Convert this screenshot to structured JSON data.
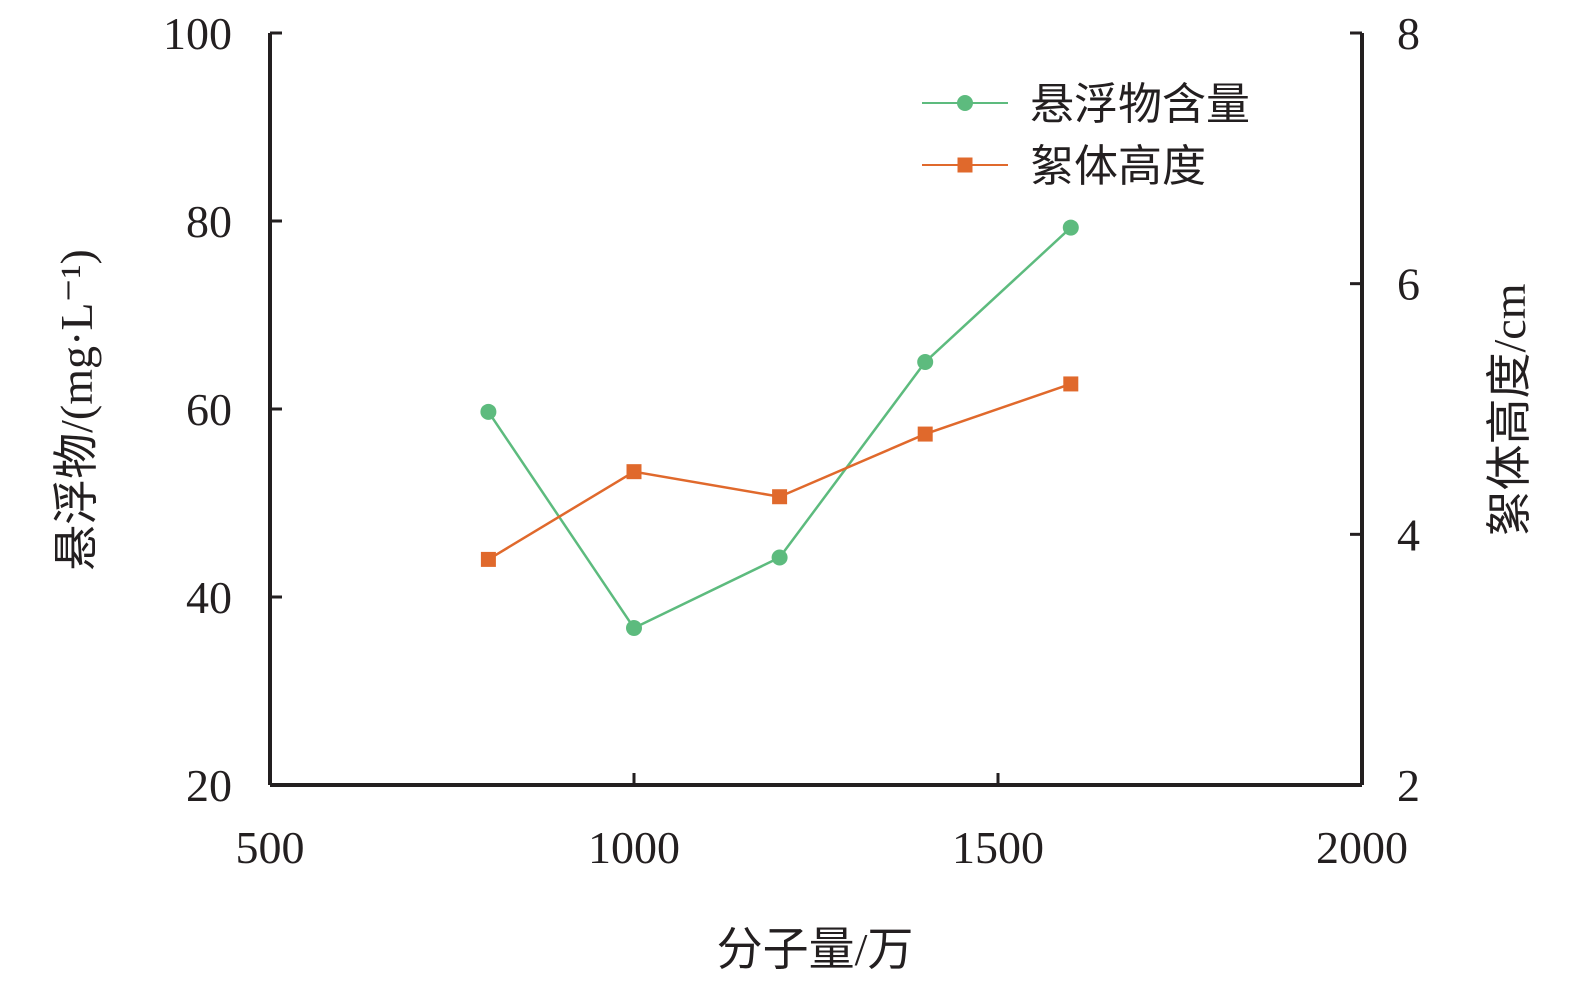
{
  "chart_data": {
    "type": "line",
    "x": [
      800,
      1000,
      1200,
      1400,
      1600
    ],
    "xlabel": "分子量/万",
    "xlim": [
      500,
      2000
    ],
    "xticks": [
      "500",
      "1000",
      "1500",
      "2000"
    ],
    "ylabel_left": "悬浮物/(mg·L⁻¹)",
    "ylim_left": [
      20,
      100
    ],
    "yticks_left": [
      "20",
      "40",
      "60",
      "80",
      "100"
    ],
    "ylabel_right": "絮体高度/cm",
    "ylim_right": [
      2,
      8
    ],
    "yticks_right": [
      "2",
      "4",
      "6",
      "8"
    ],
    "series": [
      {
        "name": "悬浮物含量",
        "axis": "left",
        "marker": "circle",
        "color": "#5dbb7e",
        "values": [
          59.7,
          36.7,
          44.2,
          65.0,
          79.3
        ]
      },
      {
        "name": "絮体高度",
        "axis": "right",
        "marker": "square",
        "color": "#e0692c",
        "values": [
          3.8,
          4.5,
          4.3,
          4.8,
          5.2
        ]
      }
    ],
    "legend_position": "top-right",
    "grid": false
  }
}
